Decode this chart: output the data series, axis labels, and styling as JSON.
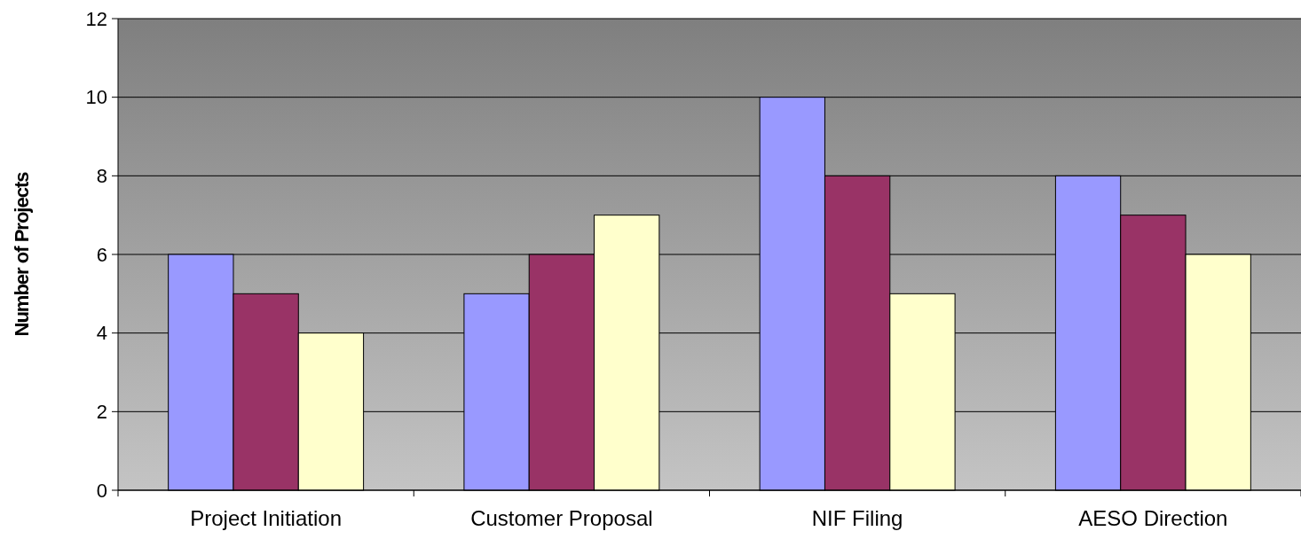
{
  "chart_data": {
    "type": "bar",
    "ylabel": "Number of Projects",
    "categories": [
      "Project Initiation",
      "Customer Proposal",
      "NIF Filing",
      "AESO Direction"
    ],
    "series": [
      {
        "color": "#9999ff",
        "values": [
          6,
          5,
          10,
          8
        ]
      },
      {
        "color": "#993366",
        "values": [
          5,
          6,
          8,
          7
        ]
      },
      {
        "color": "#ffffcc",
        "values": [
          4,
          7,
          5,
          6
        ]
      }
    ],
    "ylim": [
      0,
      12
    ],
    "yticks": [
      0,
      2,
      4,
      6,
      8,
      10,
      12
    ],
    "grid": "y"
  }
}
